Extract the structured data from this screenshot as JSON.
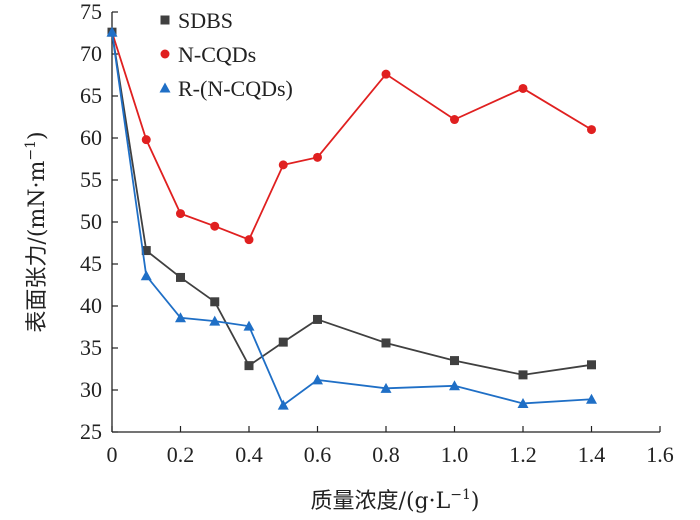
{
  "chart_data": {
    "type": "line",
    "xlabel": "质量浓度/(g·L",
    "xlabel_sup": "−1",
    "xlabel_end": ")",
    "ylabel": "表面张力/(mN·m",
    "ylabel_sup": "−1",
    "ylabel_end": ")",
    "xlim": [
      0,
      1.6
    ],
    "ylim": [
      25,
      75
    ],
    "xticks": [
      0,
      0.2,
      0.4,
      0.6,
      0.8,
      1.0,
      1.2,
      1.4,
      1.6
    ],
    "xtick_labels": [
      "0",
      "0.2",
      "0.4",
      "0.6",
      "0.8",
      "1.0",
      "1.2",
      "1.4",
      "1.6"
    ],
    "yticks": [
      25,
      30,
      35,
      40,
      45,
      50,
      55,
      60,
      65,
      70,
      75
    ],
    "ytick_labels": [
      "25",
      "30",
      "35",
      "40",
      "45",
      "50",
      "55",
      "60",
      "65",
      "70",
      "75"
    ],
    "legend_position": "top-left",
    "series": [
      {
        "name": "SDBS",
        "color": "#404040",
        "marker": "square",
        "x": [
          0,
          0.1,
          0.2,
          0.3,
          0.4,
          0.5,
          0.6,
          0.8,
          1.0,
          1.2,
          1.4
        ],
        "y": [
          72.6,
          46.6,
          43.4,
          40.5,
          32.9,
          35.7,
          38.4,
          35.6,
          33.5,
          31.8,
          33.0
        ]
      },
      {
        "name": "N-CQDs",
        "color": "#e02020",
        "marker": "circle",
        "x": [
          0,
          0.1,
          0.2,
          0.3,
          0.4,
          0.5,
          0.6,
          0.8,
          1.0,
          1.2,
          1.4
        ],
        "y": [
          72.6,
          59.8,
          51.0,
          49.5,
          47.9,
          56.8,
          57.7,
          67.6,
          62.2,
          65.9,
          61.0
        ]
      },
      {
        "name": "R-(N-CQDs)",
        "color": "#1f6fc6",
        "marker": "triangle",
        "x": [
          0,
          0.1,
          0.2,
          0.3,
          0.4,
          0.5,
          0.6,
          0.8,
          1.0,
          1.2,
          1.4
        ],
        "y": [
          72.6,
          43.6,
          38.6,
          38.2,
          37.6,
          28.2,
          31.2,
          30.2,
          30.5,
          28.4,
          28.9
        ]
      }
    ]
  }
}
